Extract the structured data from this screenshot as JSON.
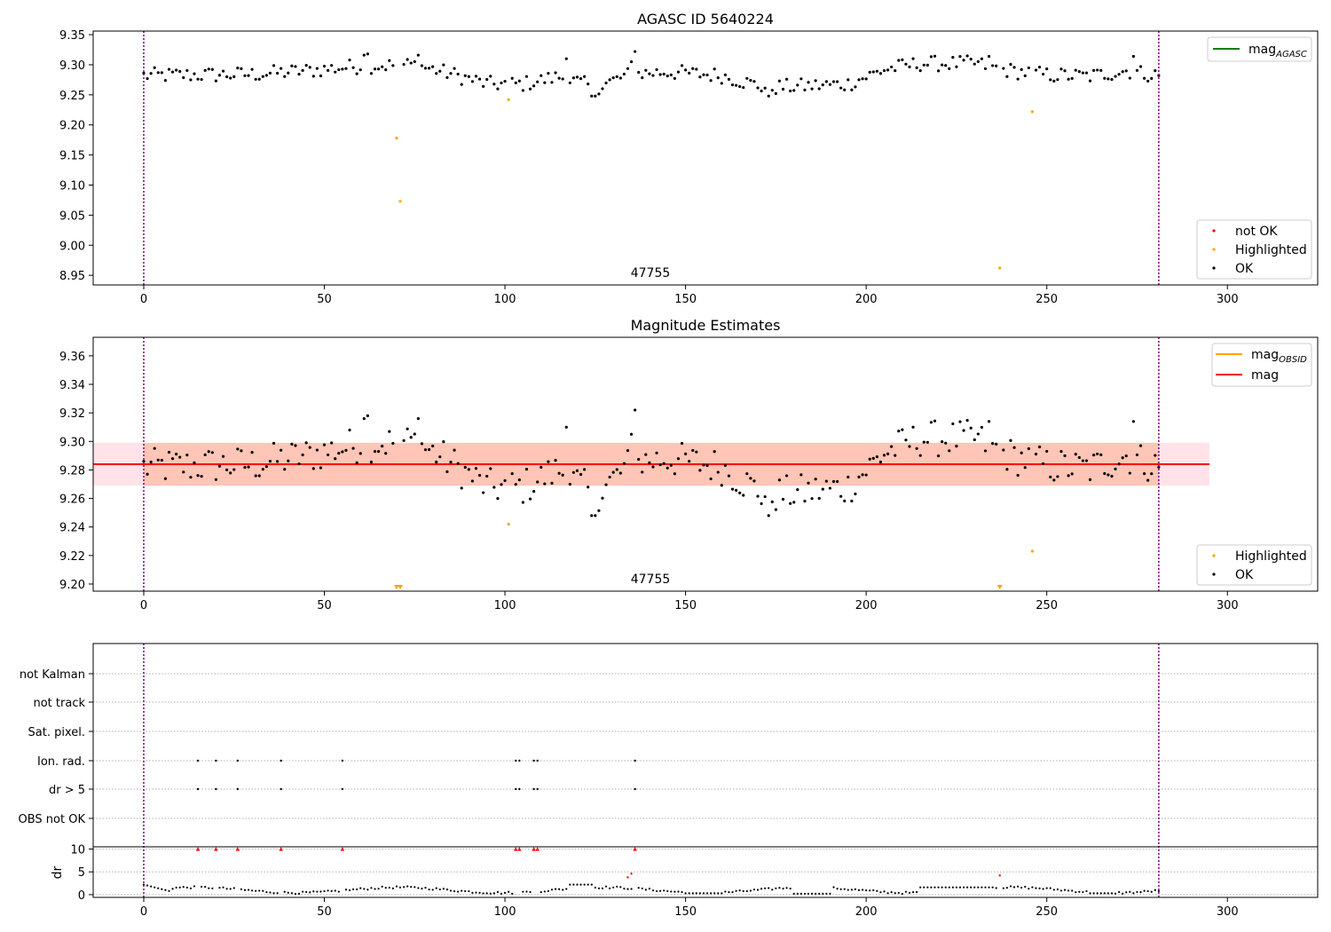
{
  "colors": {
    "ok": "#000000",
    "highlighted": "#ffa500",
    "not_ok": "#ff0000",
    "mag_agasc": "#008000",
    "mag_obsid": "#ffa500",
    "mag": "#ff0000",
    "band_outer": "#ffc0cb",
    "band_inner": "#ffa07a",
    "vline": "#800080",
    "grid": "#b0b0b0"
  },
  "chart_data": [
    {
      "type": "scatter",
      "title": "AGASC ID 5640224",
      "annotation": "47755",
      "xlim": [
        -14,
        325
      ],
      "ylim": [
        8.934,
        9.356
      ],
      "xticks": [
        0,
        50,
        100,
        150,
        200,
        250,
        300
      ],
      "yticks": [
        8.95,
        9.0,
        9.05,
        9.1,
        9.15,
        9.2,
        9.25,
        9.3,
        9.35
      ],
      "ytick_labels": [
        "8.95",
        "9.00",
        "9.05",
        "9.10",
        "9.15",
        "9.20",
        "9.25",
        "9.30",
        "9.35"
      ],
      "vlines": [
        0,
        281
      ],
      "legend_lines": [
        {
          "label": "mag",
          "sub": "AGASC",
          "color": "#008000"
        }
      ],
      "legend_points": [
        {
          "label": "not OK",
          "color": "#ff0000"
        },
        {
          "label": "Highlighted",
          "color": "#ffa500"
        },
        {
          "label": "OK",
          "color": "#000000"
        }
      ],
      "highlighted": [
        [
          70,
          9.178
        ],
        [
          71,
          9.073
        ],
        [
          101,
          9.242
        ],
        [
          237,
          8.962
        ],
        [
          246,
          9.222
        ]
      ]
    },
    {
      "type": "scatter",
      "title": "Magnitude Estimates",
      "annotation": "47755",
      "xlim": [
        -14,
        325
      ],
      "ylim": [
        9.195,
        9.373
      ],
      "xticks": [
        0,
        50,
        100,
        150,
        200,
        250,
        300
      ],
      "yticks": [
        9.2,
        9.22,
        9.24,
        9.26,
        9.28,
        9.3,
        9.32,
        9.34,
        9.36
      ],
      "ytick_labels": [
        "9.20",
        "9.22",
        "9.24",
        "9.26",
        "9.28",
        "9.30",
        "9.32",
        "9.34",
        "9.36"
      ],
      "vlines": [
        0,
        281
      ],
      "mag": 9.284,
      "mag_obsid": 9.284,
      "band_outer": [
        -14,
        295,
        9.269,
        9.299
      ],
      "band_inner": [
        0,
        281,
        9.269,
        9.299
      ],
      "legend_lines": [
        {
          "label": "mag",
          "sub": "OBSID",
          "color": "#ffa500"
        },
        {
          "label": "mag",
          "sub": "",
          "color": "#ff0000"
        }
      ],
      "legend_points": [
        {
          "label": "Highlighted",
          "color": "#ffa500"
        },
        {
          "label": "OK",
          "color": "#000000"
        }
      ],
      "highlighted": [
        [
          101,
          9.242
        ],
        [
          246,
          9.223
        ]
      ],
      "offscale_markers": [
        70,
        71,
        237
      ]
    },
    {
      "type": "scatter",
      "title": "",
      "xlim": [
        -14,
        325
      ],
      "xticks": [
        0,
        50,
        100,
        150,
        200,
        250,
        300
      ],
      "vlines": [
        0,
        281
      ],
      "flag_rows": [
        "not Kalman",
        "not track",
        "Sat. pixel.",
        "Ion. rad.",
        "dr > 5",
        "OBS not OK"
      ],
      "flags": {
        "Ion. rad.": [
          15,
          20,
          26,
          38,
          55,
          103,
          104,
          108,
          109,
          136
        ],
        "dr > 5": [
          15,
          20,
          26,
          38,
          55,
          103,
          104,
          108,
          109,
          136
        ]
      },
      "dr_ylabel": "dr",
      "dr_ylim": [
        -0.6,
        10.5
      ],
      "dr_yticks": [
        0,
        5,
        10
      ],
      "dr_clipped_x": [
        15,
        20,
        26,
        38,
        55,
        103,
        104,
        108,
        109,
        136
      ],
      "dr_red_points": [
        [
          134,
          3.8
        ],
        [
          135,
          4.6
        ],
        [
          237,
          4.2
        ]
      ]
    }
  ]
}
